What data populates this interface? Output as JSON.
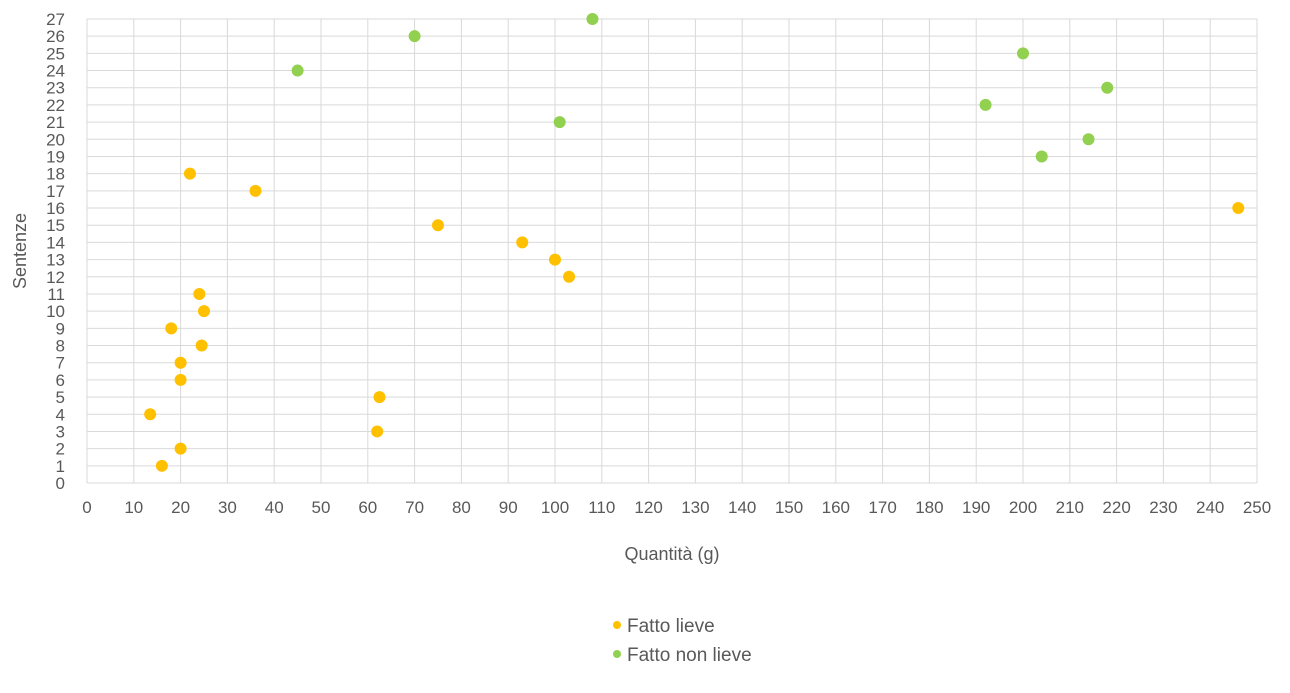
{
  "chart_data": {
    "type": "scatter",
    "xlabel": "Quantità (g)",
    "ylabel": "Sentenze",
    "xlim": [
      0,
      250
    ],
    "ylim": [
      0,
      27
    ],
    "x_ticks": [
      "0",
      "10",
      "20",
      "30",
      "40",
      "50",
      "60",
      "70",
      "80",
      "90",
      "100",
      "110",
      "120",
      "130",
      "140",
      "150",
      "160",
      "170",
      "180",
      "190",
      "200",
      "210",
      "220",
      "230",
      "240",
      "250"
    ],
    "y_ticks": [
      "0",
      "1",
      "2",
      "3",
      "4",
      "5",
      "6",
      "7",
      "8",
      "9",
      "10",
      "11",
      "12",
      "13",
      "14",
      "15",
      "16",
      "17",
      "18",
      "19",
      "20",
      "21",
      "22",
      "23",
      "24",
      "25",
      "26",
      "27"
    ],
    "grid": true,
    "legend_position": "bottom",
    "series": [
      {
        "name": "Fatto lieve",
        "color": "#FFC000",
        "points": [
          {
            "x": 16,
            "y": 1
          },
          {
            "x": 20,
            "y": 2
          },
          {
            "x": 62,
            "y": 3
          },
          {
            "x": 13.5,
            "y": 4
          },
          {
            "x": 62.5,
            "y": 5
          },
          {
            "x": 20,
            "y": 6
          },
          {
            "x": 20,
            "y": 7
          },
          {
            "x": 24.5,
            "y": 8
          },
          {
            "x": 18,
            "y": 9
          },
          {
            "x": 25,
            "y": 10
          },
          {
            "x": 24,
            "y": 11
          },
          {
            "x": 103,
            "y": 12
          },
          {
            "x": 100,
            "y": 13
          },
          {
            "x": 93,
            "y": 14
          },
          {
            "x": 75,
            "y": 15
          },
          {
            "x": 246,
            "y": 16
          },
          {
            "x": 36,
            "y": 17
          },
          {
            "x": 22,
            "y": 18
          }
        ]
      },
      {
        "name": "Fatto non lieve",
        "color": "#92D050",
        "points": [
          {
            "x": 204,
            "y": 19
          },
          {
            "x": 214,
            "y": 20
          },
          {
            "x": 101,
            "y": 21
          },
          {
            "x": 192,
            "y": 22
          },
          {
            "x": 218,
            "y": 23
          },
          {
            "x": 45,
            "y": 24
          },
          {
            "x": 200,
            "y": 25
          },
          {
            "x": 70,
            "y": 26
          },
          {
            "x": 108,
            "y": 27
          }
        ]
      }
    ]
  }
}
